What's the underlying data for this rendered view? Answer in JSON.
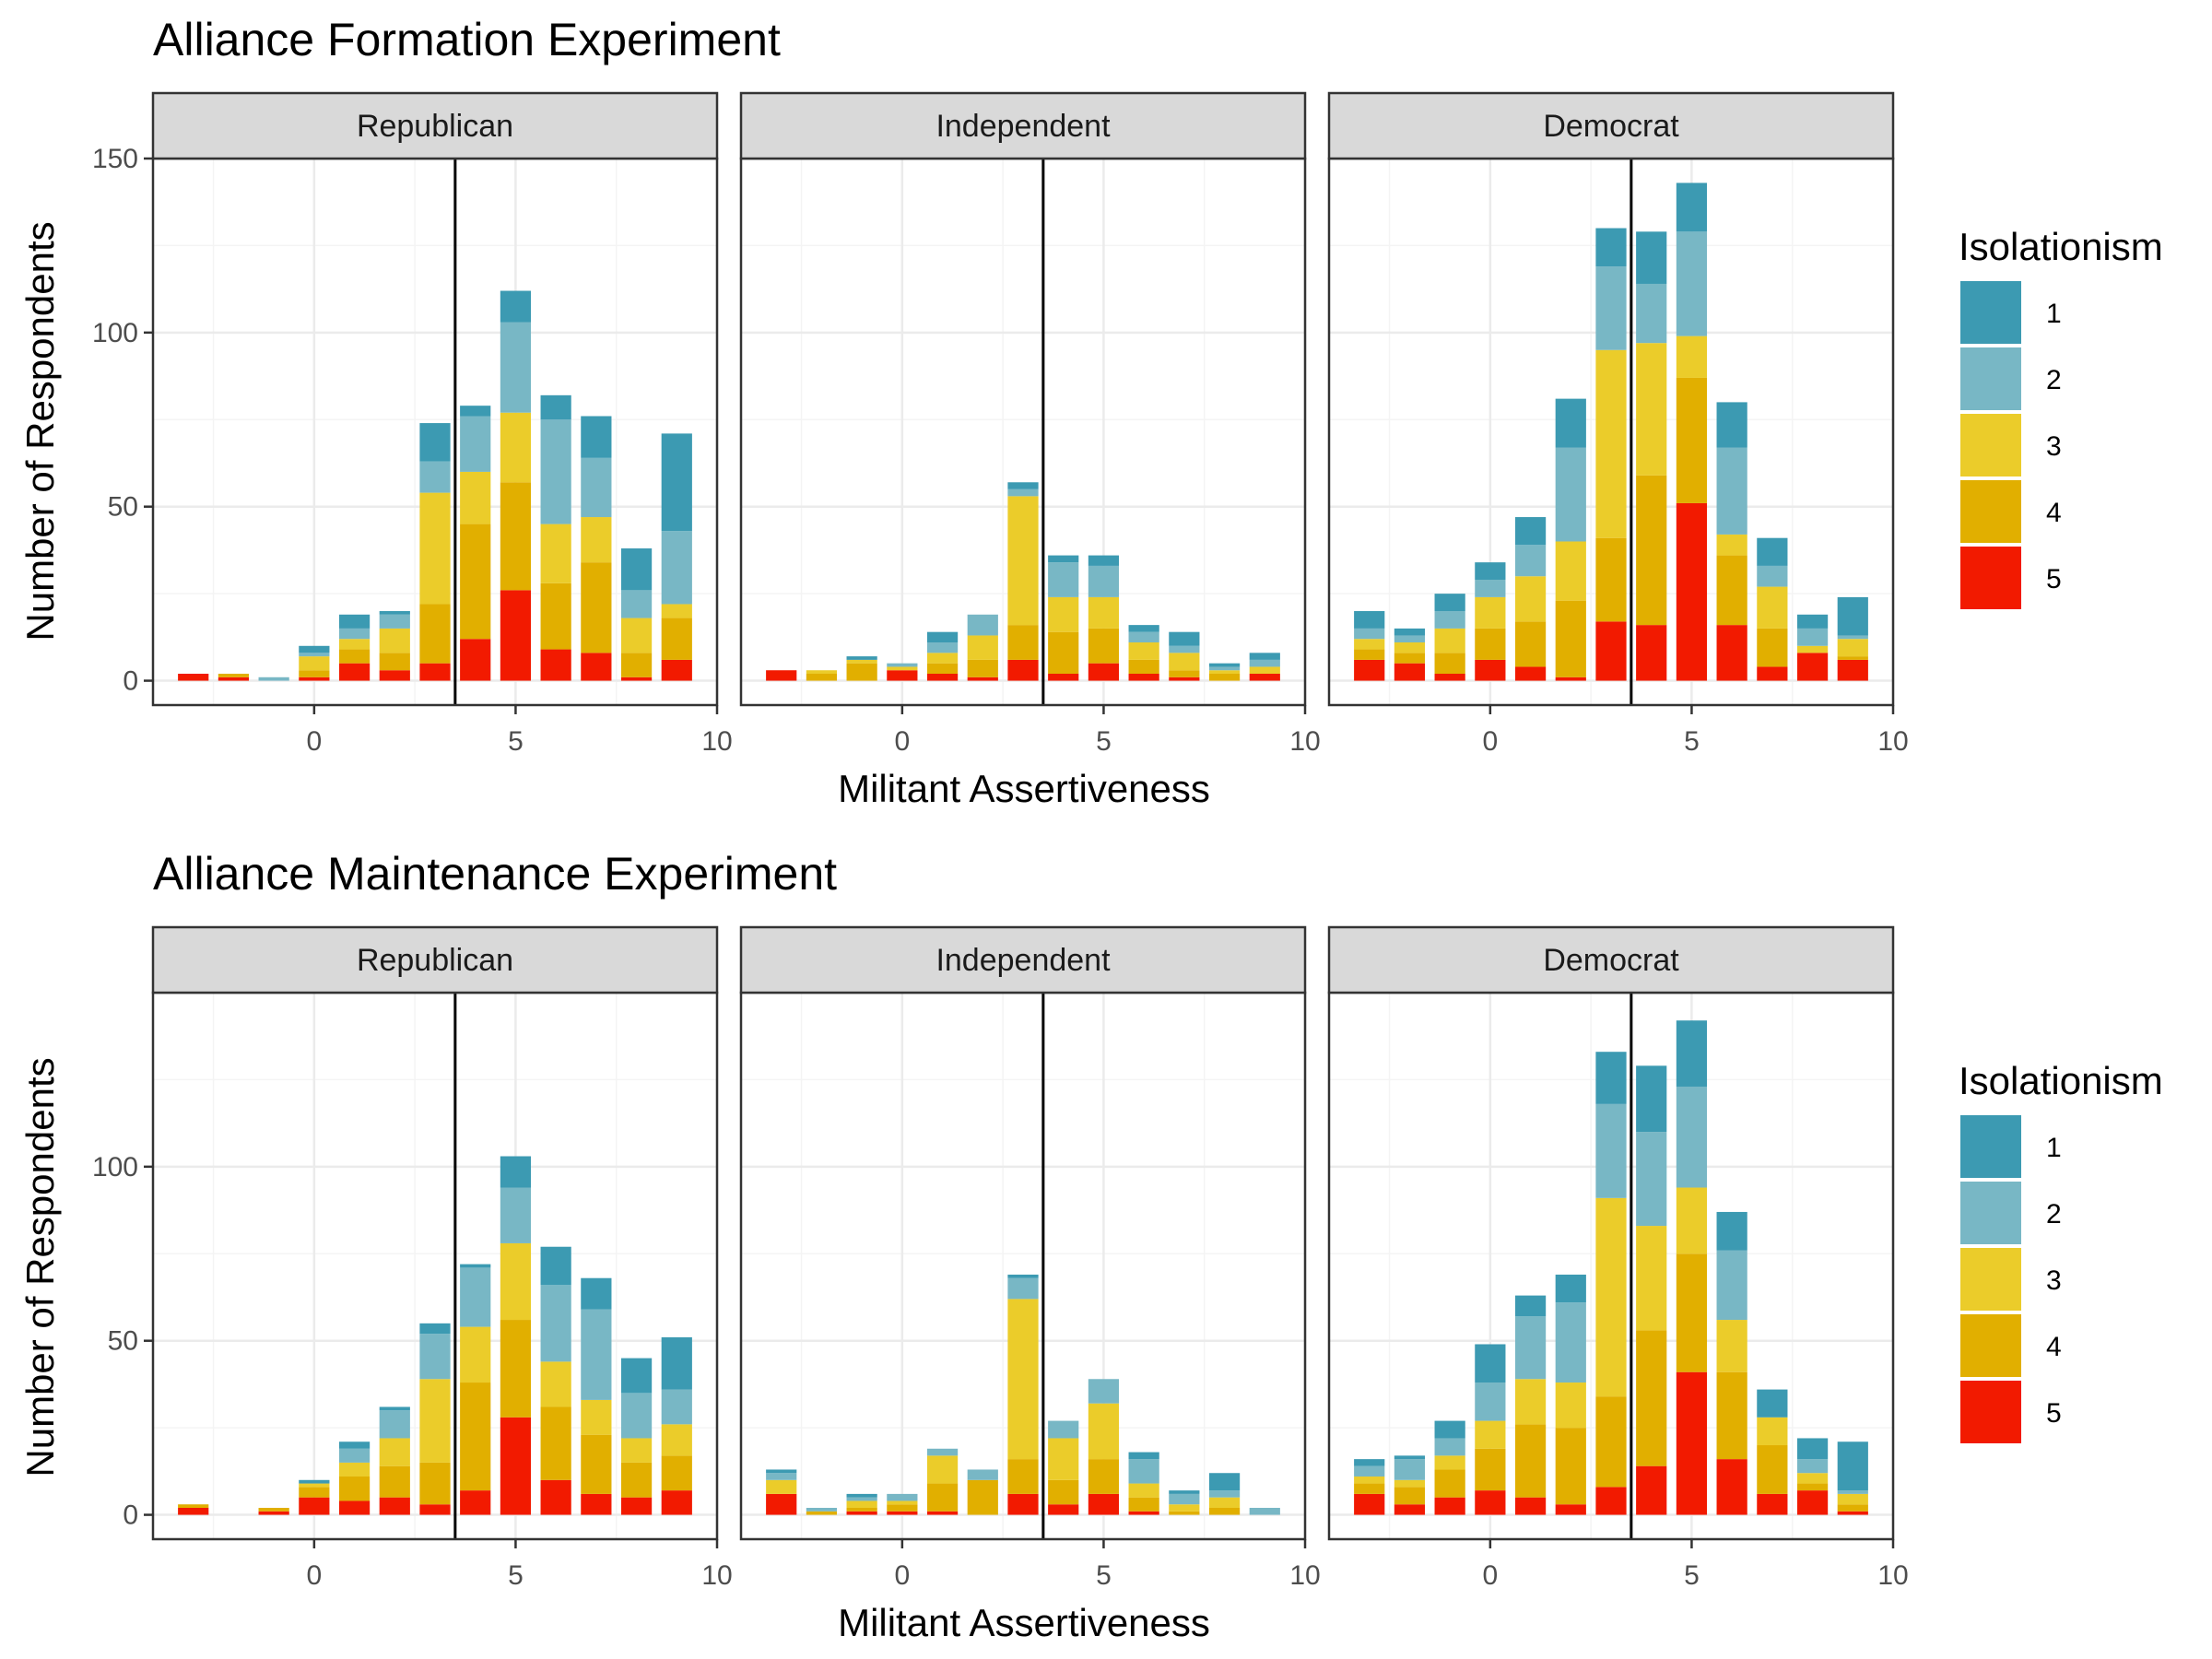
{
  "chart_data": [
    {
      "type": "bar",
      "stacked": true,
      "title": "Alliance Formation Experiment",
      "xlabel": "Militant Assertiveness",
      "ylabel": "Number of Respondents",
      "xlim": [
        -4,
        10
      ],
      "ylim": [
        -7,
        150
      ],
      "x_ticks": [
        0,
        5,
        10
      ],
      "y_ticks": [
        0,
        50,
        100,
        150
      ],
      "vline_x": 3.5,
      "grid": true,
      "legend": {
        "title": "Isolationism",
        "position": "right",
        "levels": [
          "1",
          "2",
          "3",
          "4",
          "5"
        ]
      },
      "x": [
        -3,
        -2,
        -1,
        0,
        1,
        2,
        3,
        4,
        5,
        6,
        7,
        8,
        9
      ],
      "panels": [
        {
          "name": "Republican",
          "series": [
            {
              "level": "5",
              "values": [
                2,
                1,
                0,
                1,
                5,
                3,
                5,
                12,
                26,
                9,
                8,
                1,
                6
              ]
            },
            {
              "level": "4",
              "values": [
                0,
                1,
                0,
                2,
                4,
                5,
                17,
                33,
                31,
                19,
                26,
                7,
                12
              ]
            },
            {
              "level": "3",
              "values": [
                0,
                0,
                0,
                4,
                3,
                7,
                32,
                15,
                20,
                17,
                13,
                10,
                4
              ]
            },
            {
              "level": "2",
              "values": [
                0,
                0,
                1,
                1,
                3,
                4,
                9,
                16,
                26,
                30,
                17,
                8,
                21
              ]
            },
            {
              "level": "1",
              "values": [
                0,
                0,
                0,
                2,
                4,
                1,
                11,
                3,
                9,
                7,
                12,
                12,
                28
              ]
            }
          ]
        },
        {
          "name": "Independent",
          "series": [
            {
              "level": "5",
              "values": [
                3,
                0,
                0,
                3,
                2,
                1,
                6,
                2,
                5,
                2,
                1,
                0,
                2
              ]
            },
            {
              "level": "4",
              "values": [
                0,
                2,
                5,
                0,
                3,
                5,
                10,
                12,
                10,
                4,
                2,
                2,
                0
              ]
            },
            {
              "level": "3",
              "values": [
                0,
                1,
                1,
                1,
                3,
                7,
                37,
                10,
                9,
                5,
                5,
                1,
                2
              ]
            },
            {
              "level": "2",
              "values": [
                0,
                0,
                0,
                1,
                3,
                6,
                2,
                10,
                9,
                3,
                2,
                1,
                2
              ]
            },
            {
              "level": "1",
              "values": [
                0,
                0,
                1,
                0,
                3,
                0,
                2,
                2,
                3,
                2,
                4,
                1,
                2
              ]
            }
          ]
        },
        {
          "name": "Democrat",
          "series": [
            {
              "level": "5",
              "values": [
                6,
                5,
                2,
                6,
                4,
                1,
                17,
                16,
                51,
                16,
                4,
                8,
                6
              ]
            },
            {
              "level": "4",
              "values": [
                3,
                3,
                6,
                9,
                13,
                22,
                24,
                43,
                36,
                20,
                11,
                0,
                1
              ]
            },
            {
              "level": "3",
              "values": [
                3,
                3,
                7,
                9,
                13,
                17,
                54,
                38,
                12,
                6,
                12,
                2,
                5
              ]
            },
            {
              "level": "2",
              "values": [
                3,
                2,
                5,
                5,
                9,
                27,
                24,
                17,
                30,
                25,
                6,
                5,
                1
              ]
            },
            {
              "level": "1",
              "values": [
                5,
                2,
                5,
                5,
                8,
                14,
                11,
                15,
                14,
                13,
                8,
                4,
                11
              ]
            }
          ]
        }
      ]
    },
    {
      "type": "bar",
      "stacked": true,
      "title": "Alliance Maintenance Experiment",
      "xlabel": "Militant Assertiveness",
      "ylabel": "Number of Respondents",
      "xlim": [
        -4,
        10
      ],
      "ylim": [
        -7,
        150
      ],
      "x_ticks": [
        0,
        5,
        10
      ],
      "y_ticks": [
        0,
        50,
        100
      ],
      "vline_x": 3.5,
      "grid": true,
      "legend": {
        "title": "Isolationism",
        "position": "right",
        "levels": [
          "1",
          "2",
          "3",
          "4",
          "5"
        ]
      },
      "x": [
        -3,
        -2,
        -1,
        0,
        1,
        2,
        3,
        4,
        5,
        6,
        7,
        8,
        9
      ],
      "panels": [
        {
          "name": "Republican",
          "series": [
            {
              "level": "5",
              "values": [
                2,
                0,
                1,
                5,
                4,
                5,
                3,
                7,
                28,
                10,
                6,
                5,
                7
              ]
            },
            {
              "level": "4",
              "values": [
                1,
                0,
                1,
                3,
                7,
                9,
                12,
                31,
                28,
                21,
                17,
                10,
                10
              ]
            },
            {
              "level": "3",
              "values": [
                0,
                0,
                0,
                1,
                4,
                8,
                24,
                16,
                22,
                13,
                10,
                7,
                9
              ]
            },
            {
              "level": "2",
              "values": [
                0,
                0,
                0,
                0,
                4,
                8,
                13,
                17,
                16,
                22,
                26,
                13,
                10
              ]
            },
            {
              "level": "1",
              "values": [
                0,
                0,
                0,
                1,
                2,
                1,
                3,
                1,
                9,
                11,
                9,
                10,
                15
              ]
            }
          ]
        },
        {
          "name": "Independent",
          "series": [
            {
              "level": "5",
              "values": [
                6,
                0,
                1,
                1,
                1,
                0,
                6,
                3,
                6,
                1,
                0,
                0,
                0
              ]
            },
            {
              "level": "4",
              "values": [
                0,
                1,
                1,
                2,
                8,
                10,
                10,
                7,
                10,
                4,
                1,
                2,
                0
              ]
            },
            {
              "level": "3",
              "values": [
                4,
                0,
                2,
                1,
                8,
                0,
                46,
                12,
                16,
                4,
                2,
                3,
                0
              ]
            },
            {
              "level": "2",
              "values": [
                2,
                1,
                1,
                2,
                2,
                3,
                6,
                5,
                7,
                7,
                3,
                2,
                2
              ]
            },
            {
              "level": "1",
              "values": [
                1,
                0,
                1,
                0,
                0,
                0,
                1,
                0,
                0,
                2,
                1,
                5,
                0
              ]
            }
          ]
        },
        {
          "name": "Democrat",
          "series": [
            {
              "level": "5",
              "values": [
                6,
                3,
                5,
                7,
                5,
                3,
                8,
                14,
                41,
                16,
                6,
                7,
                1
              ]
            },
            {
              "level": "4",
              "values": [
                3,
                5,
                8,
                12,
                21,
                22,
                26,
                39,
                34,
                25,
                14,
                2,
                2
              ]
            },
            {
              "level": "3",
              "values": [
                2,
                2,
                4,
                8,
                13,
                13,
                57,
                30,
                19,
                15,
                8,
                3,
                3
              ]
            },
            {
              "level": "2",
              "values": [
                3,
                6,
                5,
                11,
                18,
                23,
                27,
                27,
                29,
                20,
                0,
                4,
                1
              ]
            },
            {
              "level": "1",
              "values": [
                2,
                1,
                5,
                11,
                6,
                8,
                15,
                19,
                19,
                11,
                8,
                6,
                14
              ]
            }
          ]
        }
      ]
    }
  ],
  "colors": {
    "1": "#3c9ab2",
    "2": "#78b7c5",
    "3": "#ebcc2a",
    "4": "#e1af00",
    "5": "#f21a00",
    "strip": "#d9d9d9",
    "grid_major": "#ebebeb",
    "grid_minor": "#f4f4f4",
    "frame": "#333333",
    "vline": "#000000"
  }
}
